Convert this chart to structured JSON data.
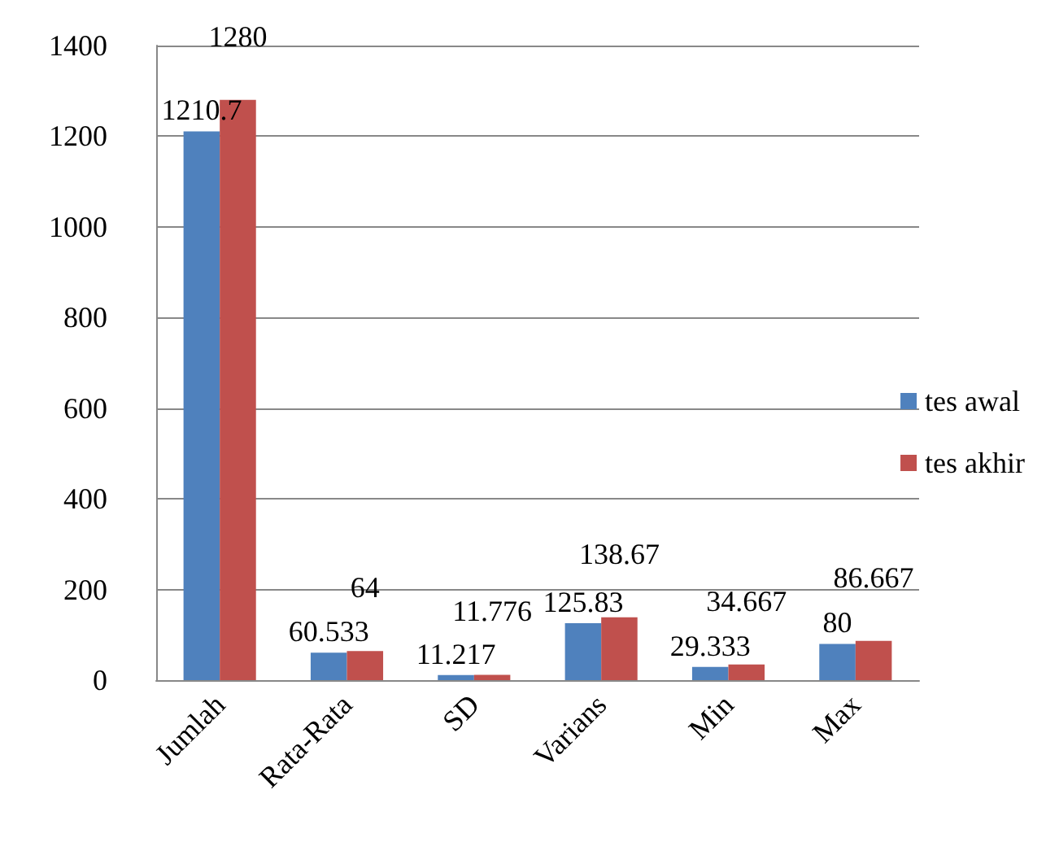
{
  "chart_data": {
    "type": "bar",
    "categories": [
      "Jumlah",
      "Rata-Rata",
      "SD",
      "Varians",
      "Min",
      "Max"
    ],
    "series": [
      {
        "name": "tes awal",
        "color": "#4f81bd",
        "values": [
          1210.7,
          60.533,
          11.217,
          125.83,
          29.333,
          80
        ]
      },
      {
        "name": "tes akhir",
        "color": "#c0504d",
        "values": [
          1280,
          64,
          11.776,
          138.67,
          34.667,
          86.667
        ]
      }
    ],
    "ylim": [
      0,
      1400
    ],
    "yticks": [
      0,
      200,
      400,
      600,
      800,
      1000,
      1200,
      1400
    ],
    "grid": "y",
    "legend": "right",
    "data_labels": true
  }
}
